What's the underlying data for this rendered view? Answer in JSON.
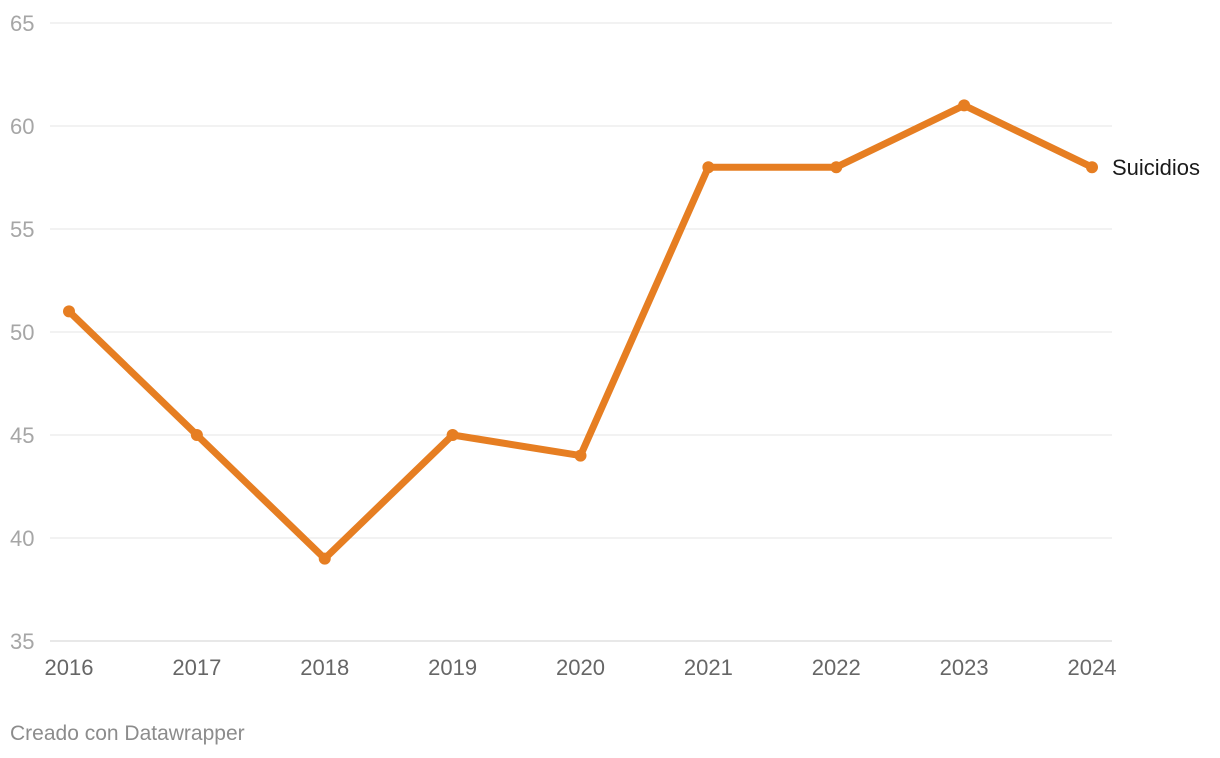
{
  "chart_data": {
    "type": "line",
    "title": "",
    "xlabel": "",
    "ylabel": "",
    "x": [
      "2016",
      "2017",
      "2018",
      "2019",
      "2020",
      "2021",
      "2022",
      "2023",
      "2024"
    ],
    "series": [
      {
        "name": "Suicidios",
        "values": [
          51,
          45,
          39,
          45,
          44,
          58,
          58,
          61,
          58
        ],
        "color": "#e67e22"
      }
    ],
    "ylim": [
      35,
      65
    ],
    "yticks": [
      "35",
      "40",
      "45",
      "50",
      "55",
      "60",
      "65"
    ],
    "grid": true,
    "legend": "inline label at line end"
  },
  "footer": {
    "credit": "Creado con Datawrapper"
  }
}
